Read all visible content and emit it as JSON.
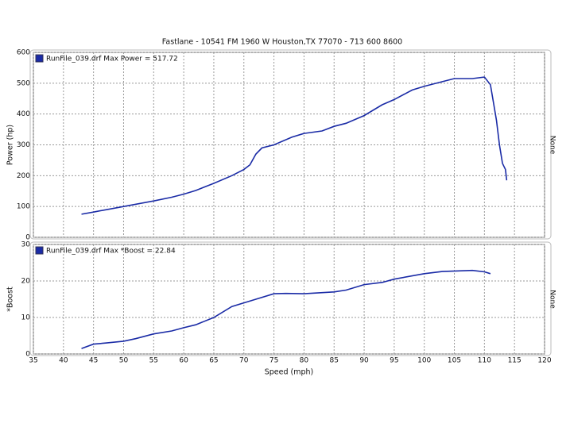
{
  "chart_data": [
    {
      "type": "line",
      "title": "Fastlane - 10541 FM 1960 W Houston,TX 77070 - 713 600 8600",
      "y_label": "Power (hp)",
      "right_label": "None",
      "xlim": [
        35,
        120
      ],
      "xticks": [
        35,
        40,
        45,
        50,
        55,
        60,
        65,
        70,
        75,
        80,
        85,
        90,
        95,
        100,
        105,
        110,
        115,
        120
      ],
      "ylim": [
        0,
        600
      ],
      "yticks": [
        0,
        100,
        200,
        300,
        400,
        500,
        600
      ],
      "grid": true,
      "x": [
        43,
        45,
        50,
        55,
        58,
        60,
        62,
        65,
        68,
        70,
        71,
        72,
        73,
        75,
        78,
        80,
        83,
        85,
        87,
        90,
        93,
        95,
        98,
        100,
        103,
        105,
        108,
        110,
        111,
        112,
        112.5,
        113,
        113.5,
        113.7
      ],
      "series": [
        {
          "name": "RunFile_039.drf Max Power = 517.72",
          "color": "#1a2ba6",
          "values": [
            75,
            82,
            100,
            118,
            130,
            140,
            152,
            175,
            200,
            220,
            235,
            270,
            290,
            300,
            325,
            337,
            345,
            360,
            370,
            395,
            430,
            447,
            478,
            490,
            505,
            515,
            515,
            520,
            495,
            380,
            300,
            240,
            220,
            185
          ]
        }
      ]
    },
    {
      "type": "line",
      "y_label": "*Boost",
      "x_label": "Speed (mph)",
      "right_label": "None",
      "xlim": [
        35,
        120
      ],
      "xticks": [
        35,
        40,
        45,
        50,
        55,
        60,
        65,
        70,
        75,
        80,
        85,
        90,
        95,
        100,
        105,
        110,
        115,
        120
      ],
      "ylim": [
        0,
        30
      ],
      "yticks": [
        0,
        10,
        20,
        30
      ],
      "grid": true,
      "x": [
        43,
        45,
        47,
        50,
        52,
        55,
        58,
        60,
        62,
        65,
        68,
        70,
        72,
        75,
        77,
        80,
        85,
        87,
        90,
        93,
        95,
        100,
        103,
        108,
        110,
        111
      ],
      "series": [
        {
          "name": "RunFile_039.drf Max *Boost = 22.84",
          "color": "#1a2ba6",
          "values": [
            1.5,
            2.7,
            3,
            3.5,
            4.2,
            5.5,
            6.3,
            7.2,
            8,
            10,
            13,
            14,
            15,
            16.5,
            16.6,
            16.5,
            17,
            17.5,
            19,
            19.6,
            20.5,
            22,
            22.6,
            22.9,
            22.5,
            22
          ]
        }
      ]
    }
  ]
}
